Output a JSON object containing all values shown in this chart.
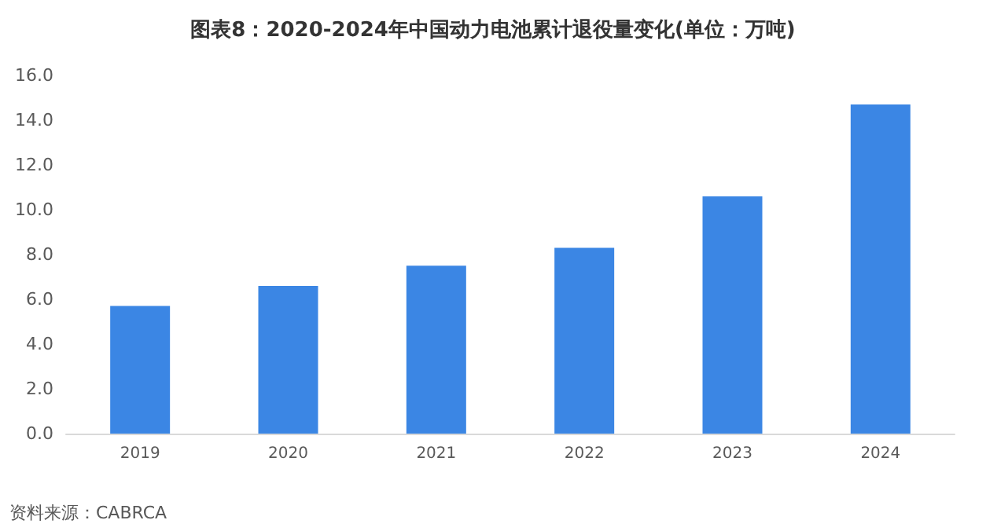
{
  "chart_data": {
    "type": "bar",
    "title": "图表8：2020-2024年中国动力电池累计退役量变化(单位：万吨)",
    "categories": [
      "2019",
      "2020",
      "2021",
      "2022",
      "2023",
      "2024"
    ],
    "values": [
      5.7,
      6.6,
      7.5,
      8.3,
      10.6,
      14.7
    ],
    "color": "#3b86e4",
    "ylim": [
      0,
      16
    ],
    "yticks": [
      {
        "value": 0,
        "label": "0.0"
      },
      {
        "value": 2,
        "label": "2.0"
      },
      {
        "value": 4,
        "label": "4.0"
      },
      {
        "value": 6,
        "label": "6.0"
      },
      {
        "value": 8,
        "label": "8.0"
      },
      {
        "value": 10,
        "label": "10.0"
      },
      {
        "value": 12,
        "label": "12.0"
      },
      {
        "value": 14,
        "label": "14.0"
      },
      {
        "value": 16,
        "label": "16.0"
      }
    ],
    "grid": false,
    "annotations": [
      "资料来源：CABRCA"
    ]
  }
}
